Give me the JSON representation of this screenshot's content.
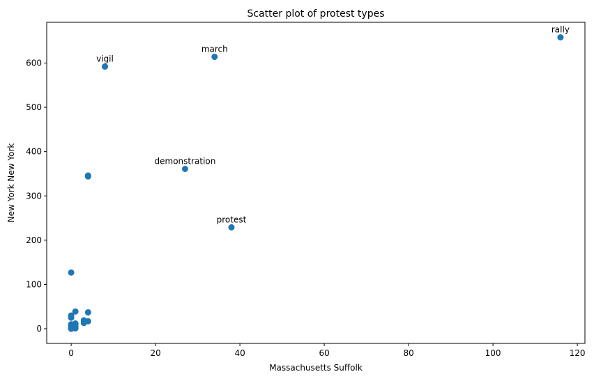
{
  "chart_data": {
    "type": "scatter",
    "title": "Scatter plot of protest types",
    "xlabel": "Massachusetts Suffolk",
    "ylabel": "New York New York",
    "xlim": [
      -5.8,
      121.8
    ],
    "ylim": [
      -33,
      692
    ],
    "xticks": [
      0,
      20,
      40,
      60,
      80,
      100,
      120
    ],
    "yticks": [
      0,
      100,
      200,
      300,
      400,
      500,
      600
    ],
    "grid": false,
    "marker_color": "#1f77b4",
    "points": [
      {
        "x": 116,
        "y": 658,
        "label": "rally"
      },
      {
        "x": 34,
        "y": 614,
        "label": "march"
      },
      {
        "x": 8,
        "y": 592,
        "label": "vigil"
      },
      {
        "x": 27,
        "y": 361,
        "label": "demonstration"
      },
      {
        "x": 38,
        "y": 229,
        "label": "protest"
      },
      {
        "x": 4,
        "y": 346
      },
      {
        "x": 4,
        "y": 344
      },
      {
        "x": 0,
        "y": 127
      },
      {
        "x": 1,
        "y": 39
      },
      {
        "x": 4,
        "y": 37
      },
      {
        "x": 0,
        "y": 30
      },
      {
        "x": 0,
        "y": 25
      },
      {
        "x": 3,
        "y": 19
      },
      {
        "x": 4,
        "y": 17
      },
      {
        "x": 3,
        "y": 13
      },
      {
        "x": 1,
        "y": 12
      },
      {
        "x": 0,
        "y": 10
      },
      {
        "x": 1,
        "y": 8
      },
      {
        "x": 0,
        "y": 6
      },
      {
        "x": 1,
        "y": 4
      },
      {
        "x": 0,
        "y": 3
      },
      {
        "x": 0,
        "y": 2
      },
      {
        "x": 1,
        "y": 1
      },
      {
        "x": 0,
        "y": 0
      }
    ]
  }
}
